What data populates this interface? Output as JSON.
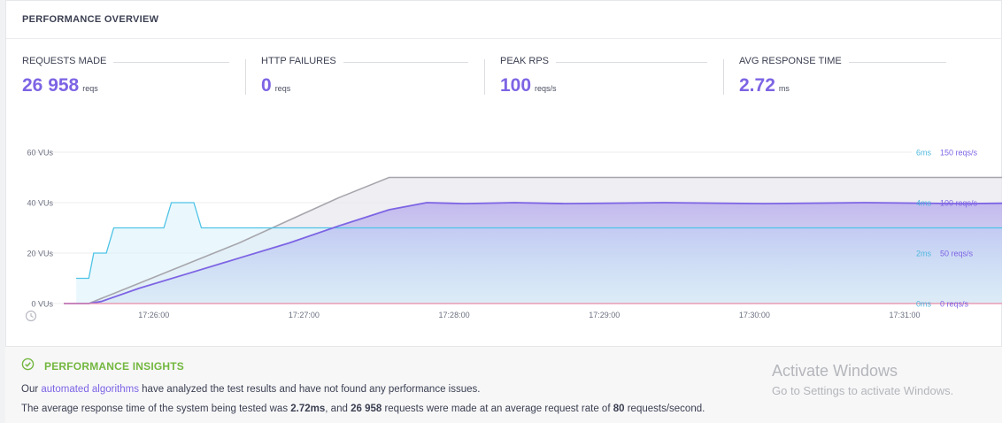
{
  "panel": {
    "title": "PERFORMANCE OVERVIEW"
  },
  "metrics": [
    {
      "label": "REQUESTS MADE",
      "value": "26 958",
      "unit": "reqs"
    },
    {
      "label": "HTTP FAILURES",
      "value": "0",
      "unit": "reqs"
    },
    {
      "label": "PEAK RPS",
      "value": "100",
      "unit": "reqs/s"
    },
    {
      "label": "AVG RESPONSE TIME",
      "value": "2.72",
      "unit": "ms"
    }
  ],
  "colors": {
    "accent": "#7d64e4",
    "vus": "#a7a6ad",
    "response_time": "#4fc3e6",
    "failures": "#e88aa6",
    "insight_green": "#73b73f"
  },
  "chart_data": {
    "type": "line",
    "x_ticks": [
      "17:26:00",
      "17:27:00",
      "17:28:00",
      "17:29:00",
      "17:30:00",
      "17:31:00"
    ],
    "x_range": [
      "17:25:24",
      "17:31:00"
    ],
    "left_axis": {
      "ticks": [
        "0 VUs",
        "20 VUs",
        "40 VUs",
        "60 VUs"
      ],
      "range": [
        0,
        60
      ]
    },
    "right_axis_ms": {
      "ticks": [
        "0ms",
        "2ms",
        "4ms",
        "6ms"
      ],
      "range": [
        0,
        6
      ]
    },
    "right_axis_rps": {
      "ticks": [
        "0 reqs/s",
        "50 reqs/s",
        "100 reqs/s",
        "150 reqs/s"
      ],
      "range": [
        0,
        150
      ]
    },
    "grid": true,
    "series": [
      {
        "axis": "vus",
        "points": [
          [
            0,
            0
          ],
          [
            10,
            0
          ],
          [
            15,
            2
          ],
          [
            30,
            8
          ],
          [
            50,
            16
          ],
          [
            70,
            24
          ],
          [
            90,
            33
          ],
          [
            110,
            42
          ],
          [
            130,
            50
          ],
          [
            180,
            50
          ],
          [
            240,
            50
          ],
          [
            300,
            50
          ],
          [
            360,
            50
          ],
          [
            400,
            50
          ],
          [
            420,
            48
          ],
          [
            440,
            42
          ],
          [
            460,
            32
          ],
          [
            480,
            22
          ],
          [
            500,
            12
          ],
          [
            520,
            4
          ],
          [
            540,
            0
          ]
        ]
      },
      {
        "axis": "rps",
        "points": [
          [
            0,
            0
          ],
          [
            10,
            0
          ],
          [
            15,
            2
          ],
          [
            30,
            15
          ],
          [
            50,
            30
          ],
          [
            70,
            45
          ],
          [
            90,
            60
          ],
          [
            110,
            77
          ],
          [
            130,
            93
          ],
          [
            145,
            100
          ],
          [
            160,
            99
          ],
          [
            180,
            100
          ],
          [
            200,
            99
          ],
          [
            240,
            100
          ],
          [
            280,
            99
          ],
          [
            320,
            100
          ],
          [
            360,
            99
          ],
          [
            400,
            100
          ],
          [
            415,
            98
          ],
          [
            430,
            88
          ],
          [
            450,
            75
          ],
          [
            470,
            60
          ],
          [
            490,
            45
          ],
          [
            510,
            30
          ],
          [
            530,
            12
          ],
          [
            540,
            0
          ]
        ]
      },
      {
        "axis": "ms",
        "points": [
          [
            5,
            1
          ],
          [
            10,
            1
          ],
          [
            12,
            2
          ],
          [
            17,
            2
          ],
          [
            20,
            3
          ],
          [
            40,
            3
          ],
          [
            43,
            4
          ],
          [
            52,
            4
          ],
          [
            55,
            3
          ],
          [
            300,
            3
          ],
          [
            530,
            3
          ],
          [
            532,
            1
          ],
          [
            540,
            1
          ]
        ]
      },
      {
        "axis": "rps",
        "points": [
          [
            0,
            0
          ],
          [
            540,
            0
          ]
        ]
      }
    ]
  },
  "insights": {
    "title": "PERFORMANCE INSIGHTS",
    "line1_pre": "Our ",
    "line1_link": "automated algorithms",
    "line1_post": " have analyzed the test results and have not found any performance issues.",
    "line2_a": "The average response time of the system being tested was ",
    "line2_b": "2.72ms",
    "line2_c": ", and ",
    "line2_d": "26 958",
    "line2_e": " requests were made at an average request rate of ",
    "line2_f": "80",
    "line2_g": " requests/second."
  },
  "watermark": {
    "title": "Activate Windows",
    "subtitle": "Go to Settings to activate Windows."
  }
}
